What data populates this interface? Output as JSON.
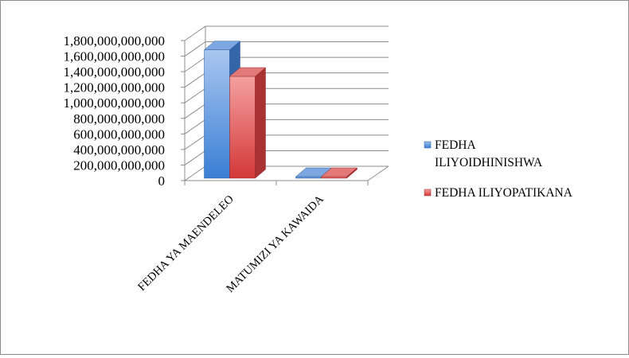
{
  "chart_data": {
    "type": "bar",
    "style": "3d-clustered-column",
    "categories": [
      "FEDHA YA MAENDELEO",
      "MATUMIZI YA KAWAIDA"
    ],
    "series": [
      {
        "name": "FEDHA ILIYOIDHINISHWA",
        "name_lines": [
          "FEDHA",
          "ILIYOIDHINISHWA"
        ],
        "color": "#4f81bd",
        "values": [
          1680000000000,
          8000000000
        ]
      },
      {
        "name": "FEDHA ILIYOPATIKANA",
        "name_lines": [
          "FEDHA ILIYOPATIKANA"
        ],
        "color": "#c0504d",
        "values": [
          1340000000000,
          6000000000
        ]
      }
    ],
    "ylim": [
      0,
      1800000000000
    ],
    "ytick_values": [
      0,
      200000000000,
      400000000000,
      600000000000,
      800000000000,
      1000000000000,
      1200000000000,
      1400000000000,
      1600000000000,
      1800000000000
    ],
    "ytick_labels": [
      "0",
      "200,000,000,000",
      "400,000,000,000",
      "600,000,000,000",
      "800,000,000,000",
      "1,000,000,000,000",
      "1,200,000,000,000",
      "1,400,000,000,000",
      "1,600,000,000,000",
      "1,800,000,000,000"
    ],
    "grid": true,
    "legend_position": "right",
    "title": "",
    "xlabel": "",
    "ylabel": ""
  }
}
